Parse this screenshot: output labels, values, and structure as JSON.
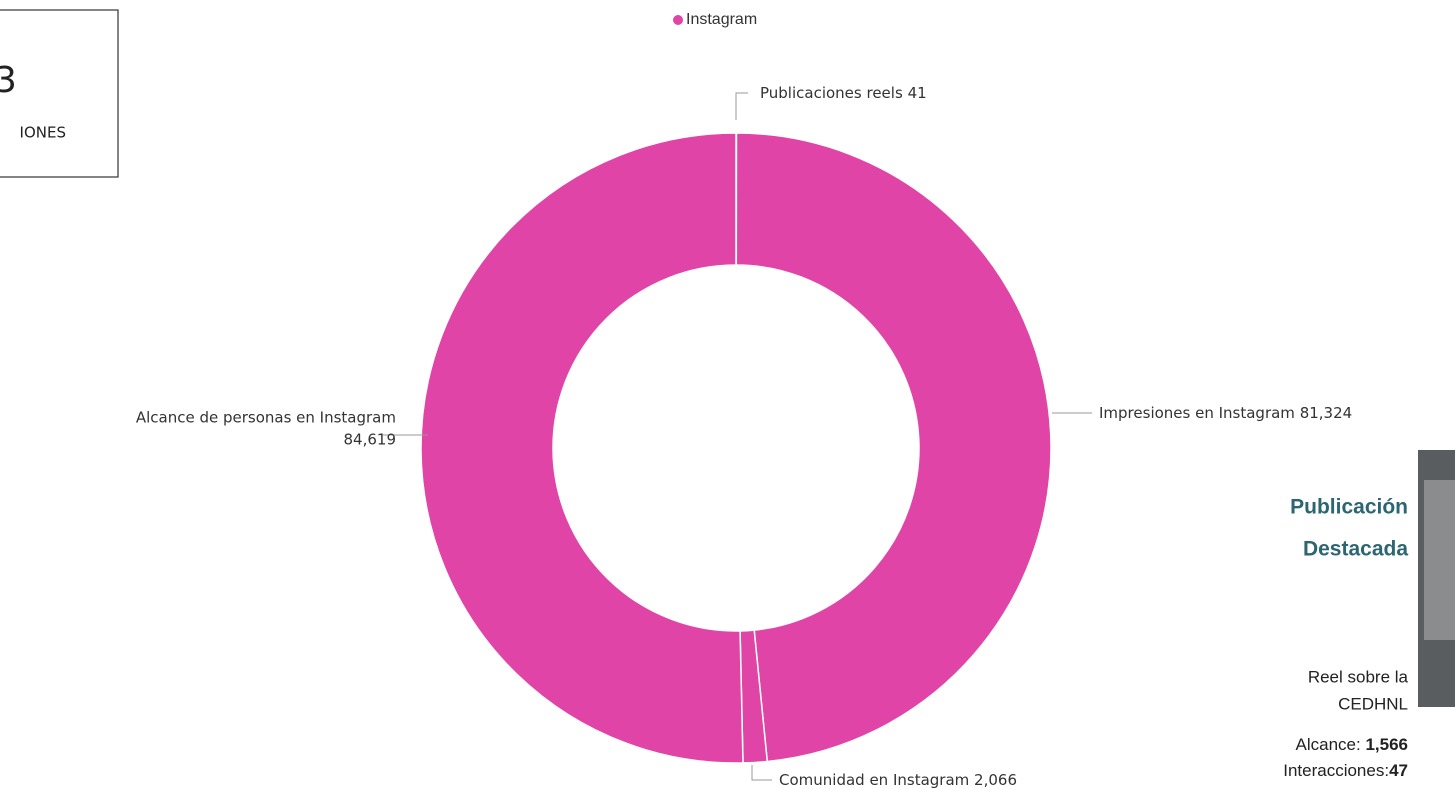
{
  "card": {
    "value": "3",
    "label": "IONES"
  },
  "chart_data": {
    "type": "donut",
    "series": [
      {
        "name": "Instagram",
        "color": "#e044a7",
        "categories": [
          "Publicaciones reels",
          "Impresiones en Instagram",
          "Comunidad en Instagram",
          "Alcance de personas en Instagram"
        ],
        "values": [
          41,
          81324,
          2066,
          84619
        ],
        "value_labels": [
          "41",
          "81,324",
          "2,066",
          "84,619"
        ]
      }
    ]
  },
  "featured": {
    "title_line1": "Publicación",
    "title_line2": "Destacada",
    "desc_line1": "Reel sobre la",
    "desc_line2": "CEDHNL",
    "reach_label": "Alcance:",
    "reach_value": "1,566",
    "interactions_label": "Interacciones:",
    "interactions_value": "47"
  }
}
